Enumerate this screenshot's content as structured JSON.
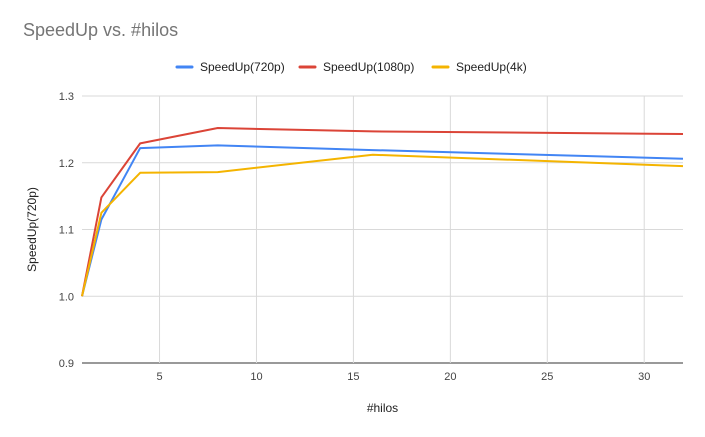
{
  "chart_data": {
    "type": "line",
    "title": "SpeedUp vs. #hilos",
    "xlabel": "#hilos",
    "ylabel": "SpeedUp(720p)",
    "xlim": [
      1,
      32
    ],
    "ylim": [
      0.9,
      1.3
    ],
    "xticks": [
      5,
      10,
      15,
      20,
      25,
      30
    ],
    "yticks": [
      0.9,
      1.0,
      1.1,
      1.2,
      1.3
    ],
    "ytick_labels": [
      "0.9",
      "1.0",
      "1.1",
      "1.2",
      "1.3"
    ],
    "grid": true,
    "legend_position": "top",
    "series": [
      {
        "name": "SpeedUp(720p)",
        "color": "#4285F4",
        "x": [
          1,
          2,
          4,
          8,
          16,
          32
        ],
        "y": [
          1.0,
          1.115,
          1.222,
          1.226,
          1.219,
          1.206
        ]
      },
      {
        "name": "SpeedUp(1080p)",
        "color": "#DB4437",
        "x": [
          1,
          2,
          4,
          8,
          16,
          32
        ],
        "y": [
          1.0,
          1.148,
          1.229,
          1.252,
          1.247,
          1.243
        ]
      },
      {
        "name": "SpeedUp(4k)",
        "color": "#F4B400",
        "x": [
          1,
          2,
          4,
          8,
          16,
          32
        ],
        "y": [
          1.0,
          1.125,
          1.185,
          1.186,
          1.212,
          1.195
        ]
      }
    ]
  }
}
